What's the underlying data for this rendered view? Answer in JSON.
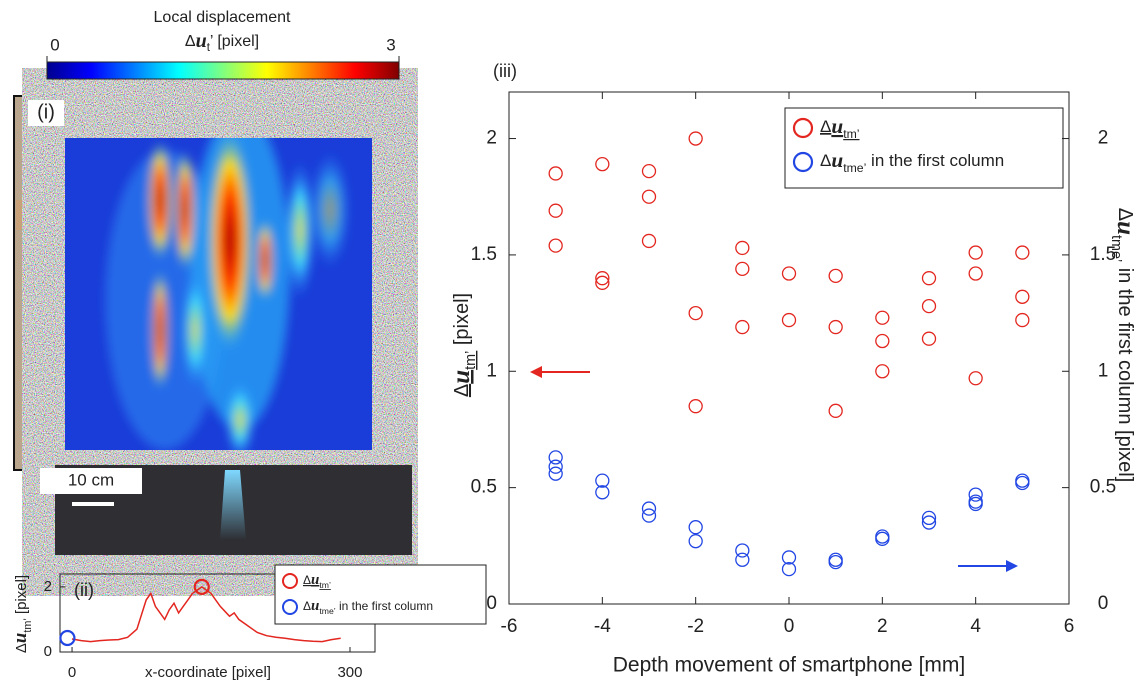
{
  "chart_data": [
    {
      "type": "image",
      "panel_label": "(i)",
      "scale_bar": "10 cm",
      "colorbar": {
        "title": "Local displacement",
        "label": [
          "Δ",
          "u",
          "t",
          "’ [pixel]"
        ],
        "clim": [
          0,
          3
        ],
        "ticks": [
          0,
          3
        ]
      }
    },
    {
      "type": "line",
      "panel_label": "(ii)",
      "xlabel": "x-coordinate [pixel]",
      "ylabel": [
        "Δ",
        "u",
        "tm’",
        " [pixel]"
      ],
      "xlim": [
        -13,
        327
      ],
      "xticks": [
        0,
        300
      ],
      "ylim": [
        0,
        2.15
      ],
      "yticks": [
        0,
        2
      ],
      "color": "#e3261f",
      "x": [
        0,
        10,
        20,
        30,
        40,
        50,
        60,
        70,
        80,
        85,
        90,
        95,
        100,
        105,
        110,
        115,
        120,
        125,
        130,
        140,
        150,
        160,
        170,
        175,
        180,
        190,
        200,
        210,
        220,
        230,
        240,
        250,
        260,
        270,
        280,
        290
      ],
      "values": [
        0.4,
        0.35,
        0.32,
        0.35,
        0.37,
        0.38,
        0.45,
        0.7,
        1.6,
        1.8,
        1.4,
        1.2,
        1.0,
        1.3,
        1.5,
        1.2,
        1.4,
        1.6,
        1.8,
        2.0,
        1.8,
        1.4,
        1.1,
        1.2,
        1.0,
        0.8,
        0.6,
        0.5,
        0.45,
        0.42,
        0.38,
        0.35,
        0.33,
        0.32,
        0.38,
        0.42
      ],
      "highlight": [
        {
          "name": [
            "Δ",
            "u",
            "tm’"
          ],
          "color": "#e3261f",
          "x": 140,
          "y": 2.0
        },
        {
          "name": [
            "Δ",
            "u",
            "tme’",
            " in the first column"
          ],
          "color": "#2146e4",
          "x": -5,
          "y": 0.43
        }
      ]
    },
    {
      "type": "scatter",
      "panel_label": "(iii)",
      "xlabel": "Depth movement of smartphone [mm]",
      "ylabel": [
        "Δ",
        "u",
        "tm’",
        " [pixel]"
      ],
      "y2label": [
        "Δ",
        "u",
        "tme’",
        " in the first column [pixel]"
      ],
      "xlim": [
        -6,
        6
      ],
      "xticks": [
        -6,
        -4,
        -2,
        0,
        2,
        4,
        6
      ],
      "ylim": [
        0,
        2.2
      ],
      "yticks": [
        0,
        0.5,
        1,
        1.5,
        2
      ],
      "y2lim": [
        0,
        2.2
      ],
      "y2ticks": [
        0,
        0.5,
        1,
        1.5,
        2
      ],
      "series": [
        {
          "name": [
            "Δ",
            "u",
            "tm’"
          ],
          "color": "#e3261f",
          "x": [
            -5,
            -5,
            -5,
            -4,
            -4,
            -4,
            -3,
            -3,
            -3,
            -2,
            -2,
            -2,
            -1,
            -1,
            -1,
            0,
            0,
            1,
            1,
            1,
            2,
            2,
            2,
            3,
            3,
            3,
            4,
            4,
            4,
            5,
            5,
            5
          ],
          "values": [
            1.85,
            1.69,
            1.54,
            1.89,
            1.4,
            1.38,
            1.86,
            1.75,
            1.56,
            2.0,
            1.25,
            0.85,
            1.53,
            1.44,
            1.19,
            1.42,
            1.22,
            1.41,
            1.19,
            0.83,
            1.23,
            1.13,
            1.0,
            1.4,
            1.28,
            1.14,
            1.51,
            1.42,
            0.97,
            1.51,
            1.32,
            1.22
          ]
        },
        {
          "name": [
            "Δ",
            "u",
            "tme’",
            " in the first column"
          ],
          "color": "#2146e4",
          "axis": "y2",
          "x": [
            -5,
            -5,
            -5,
            -4,
            -4,
            -3,
            -3,
            -2,
            -2,
            -1,
            -1,
            0,
            0,
            1,
            1,
            2,
            2,
            3,
            3,
            4,
            4,
            4,
            5,
            5
          ],
          "values": [
            0.63,
            0.59,
            0.56,
            0.53,
            0.48,
            0.41,
            0.38,
            0.33,
            0.27,
            0.23,
            0.19,
            0.2,
            0.15,
            0.19,
            0.18,
            0.29,
            0.28,
            0.37,
            0.35,
            0.47,
            0.44,
            0.43,
            0.53,
            0.52
          ]
        }
      ]
    }
  ]
}
